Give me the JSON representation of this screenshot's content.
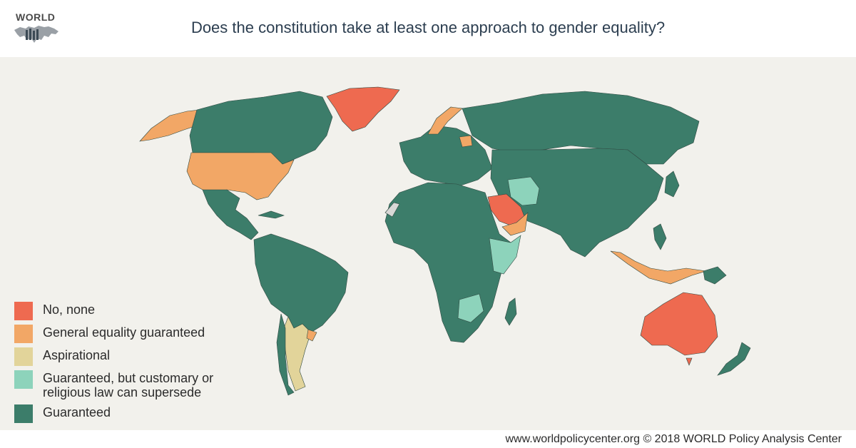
{
  "header": {
    "logo_text": "WORLD",
    "title": "Does the constitution take at least one approach to gender equality?"
  },
  "colors": {
    "none": "#ee6a50",
    "general": "#f2a766",
    "aspirational": "#e2d49a",
    "customary": "#8dd3bb",
    "guaranteed": "#3c7d6a",
    "no_data": "#d8d8d6",
    "background": "#f2f1ec"
  },
  "legend": {
    "items": [
      {
        "key": "none",
        "label": "No, none"
      },
      {
        "key": "general",
        "label": "General equality guaranteed"
      },
      {
        "key": "aspirational",
        "label": "Aspirational"
      },
      {
        "key": "customary",
        "label": "Guaranteed, but customary or\nreligious law can supersede"
      },
      {
        "key": "guaranteed",
        "label": "Guaranteed"
      }
    ]
  },
  "footer": {
    "text": "www.worldpolicycenter.org © 2018 WORLD Policy Analysis Center"
  }
}
